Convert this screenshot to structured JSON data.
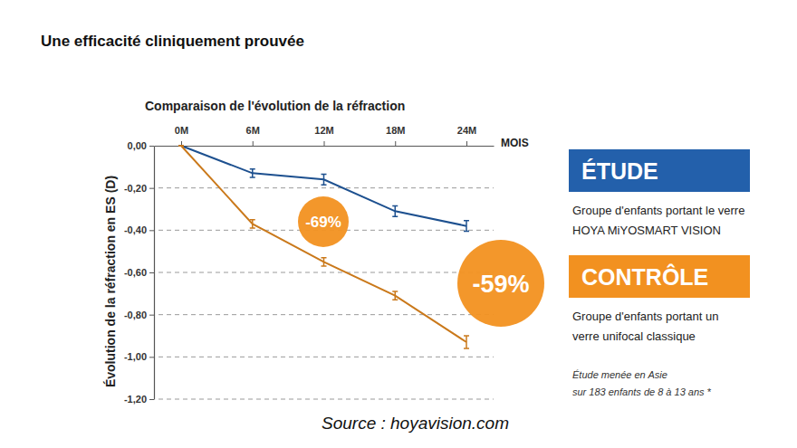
{
  "chart_data": {
    "type": "line",
    "page_title": "Une efficacité cliniquement prouvée",
    "title": "Comparaison de l'évolution de la réfraction",
    "x_label": "MOIS",
    "y_label": "Évolution de la réfraction en ES (D)",
    "categories": [
      "0M",
      "6M",
      "12M",
      "18M",
      "24M"
    ],
    "series": [
      {
        "name": "ÉTUDE",
        "description": [
          "Groupe d'enfants portant le verre",
          "HOYA MiYOSMART VISION"
        ],
        "color": "#2360ab",
        "values": [
          0,
          -0.13,
          -0.16,
          -0.31,
          -0.38
        ],
        "errors": [
          0,
          0.02,
          0.025,
          0.025,
          0.025
        ]
      },
      {
        "name": "CONTRÔLE",
        "description": [
          "Groupe d'enfants portant un",
          "verre unifocal classique"
        ],
        "color": "#f29120",
        "values": [
          0,
          -0.37,
          -0.55,
          -0.71,
          -0.93
        ],
        "errors": [
          0,
          0.02,
          0.02,
          0.02,
          0.03
        ]
      }
    ],
    "ylim": [
      -1.2,
      0
    ],
    "yticks": [
      {
        "value": 0,
        "label": "0,00"
      },
      {
        "value": -0.2,
        "label": "-0,20"
      },
      {
        "value": -0.4,
        "label": "-0,40"
      },
      {
        "value": -0.6,
        "label": "-0,60"
      },
      {
        "value": -0.8,
        "label": "-0,80"
      },
      {
        "value": -1,
        "label": "-1,00"
      },
      {
        "value": -1.2,
        "label": "-1,20"
      }
    ],
    "grid": true,
    "annotations": [
      "-69%",
      "-59%"
    ],
    "note": [
      "Étude menée en Asie",
      "sur 183 enfants de 8 à 13 ans *"
    ],
    "source": "Source : hoyavision.com"
  }
}
